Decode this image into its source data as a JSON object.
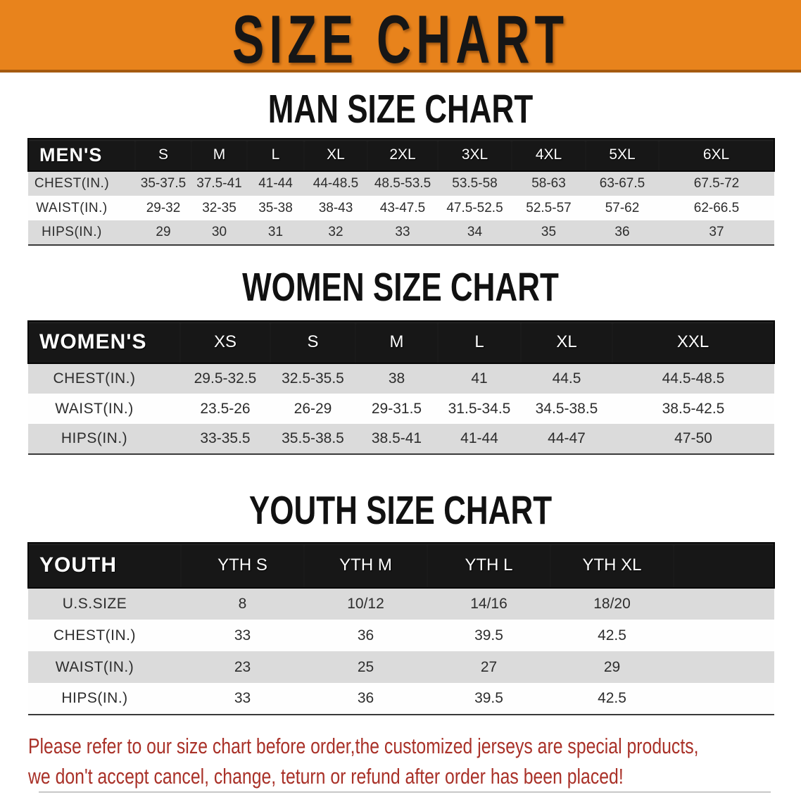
{
  "banner": {
    "title": "SIZE CHART",
    "bg_color": "#E8831C",
    "text_color": "#161616"
  },
  "sections": [
    {
      "heading": "MAN SIZE CHART",
      "table": {
        "header_label": "MEN'S",
        "columns": [
          "S",
          "M",
          "L",
          "XL",
          "2XL",
          "3XL",
          "4XL",
          "5XL",
          "6XL"
        ],
        "rows": [
          {
            "label": "CHEST(IN.)",
            "values": [
              "35-37.5",
              "37.5-41",
              "41-44",
              "44-48.5",
              "48.5-53.5",
              "53.5-58",
              "58-63",
              "63-67.5",
              "67.5-72"
            ]
          },
          {
            "label": "WAIST(IN.)",
            "values": [
              "29-32",
              "32-35",
              "35-38",
              "38-43",
              "43-47.5",
              "47.5-52.5",
              "52.5-57",
              "57-62",
              "62-66.5"
            ]
          },
          {
            "label": "HIPS(IN.)",
            "values": [
              "29",
              "30",
              "31",
              "32",
              "33",
              "34",
              "35",
              "36",
              "37"
            ]
          }
        ]
      }
    },
    {
      "heading": "WOMEN SIZE CHART",
      "table": {
        "header_label": "WOMEN'S",
        "columns": [
          "XS",
          "S",
          "M",
          "L",
          "XL",
          "XXL"
        ],
        "rows": [
          {
            "label": "CHEST(IN.)",
            "values": [
              "29.5-32.5",
              "32.5-35.5",
              "38",
              "41",
              "44.5",
              "44.5-48.5"
            ]
          },
          {
            "label": "WAIST(IN.)",
            "values": [
              "23.5-26",
              "26-29",
              "29-31.5",
              "31.5-34.5",
              "34.5-38.5",
              "38.5-42.5"
            ]
          },
          {
            "label": "HIPS(IN.)",
            "values": [
              "33-35.5",
              "35.5-38.5",
              "38.5-41",
              "41-44",
              "44-47",
              "47-50"
            ]
          }
        ]
      }
    },
    {
      "heading": "YOUTH SIZE CHART",
      "table": {
        "header_label": "YOUTH",
        "columns": [
          "YTH S",
          "YTH M",
          "YTH L",
          "YTH XL"
        ],
        "rows": [
          {
            "label": "U.S.SIZE",
            "values": [
              "8",
              "10/12",
              "14/16",
              "18/20"
            ]
          },
          {
            "label": "CHEST(IN.)",
            "values": [
              "33",
              "36",
              "39.5",
              "42.5"
            ]
          },
          {
            "label": "WAIST(IN.)",
            "values": [
              "23",
              "25",
              "27",
              "29"
            ]
          },
          {
            "label": "HIPS(IN.)",
            "values": [
              "33",
              "36",
              "39.5",
              "42.5"
            ]
          }
        ]
      }
    }
  ],
  "footer": {
    "line1": "Please refer to our size chart before order,the customized jerseys are special products,",
    "line2": "we don't accept cancel, change, teturn or refund after order has been placed!",
    "color": "#A93128"
  }
}
